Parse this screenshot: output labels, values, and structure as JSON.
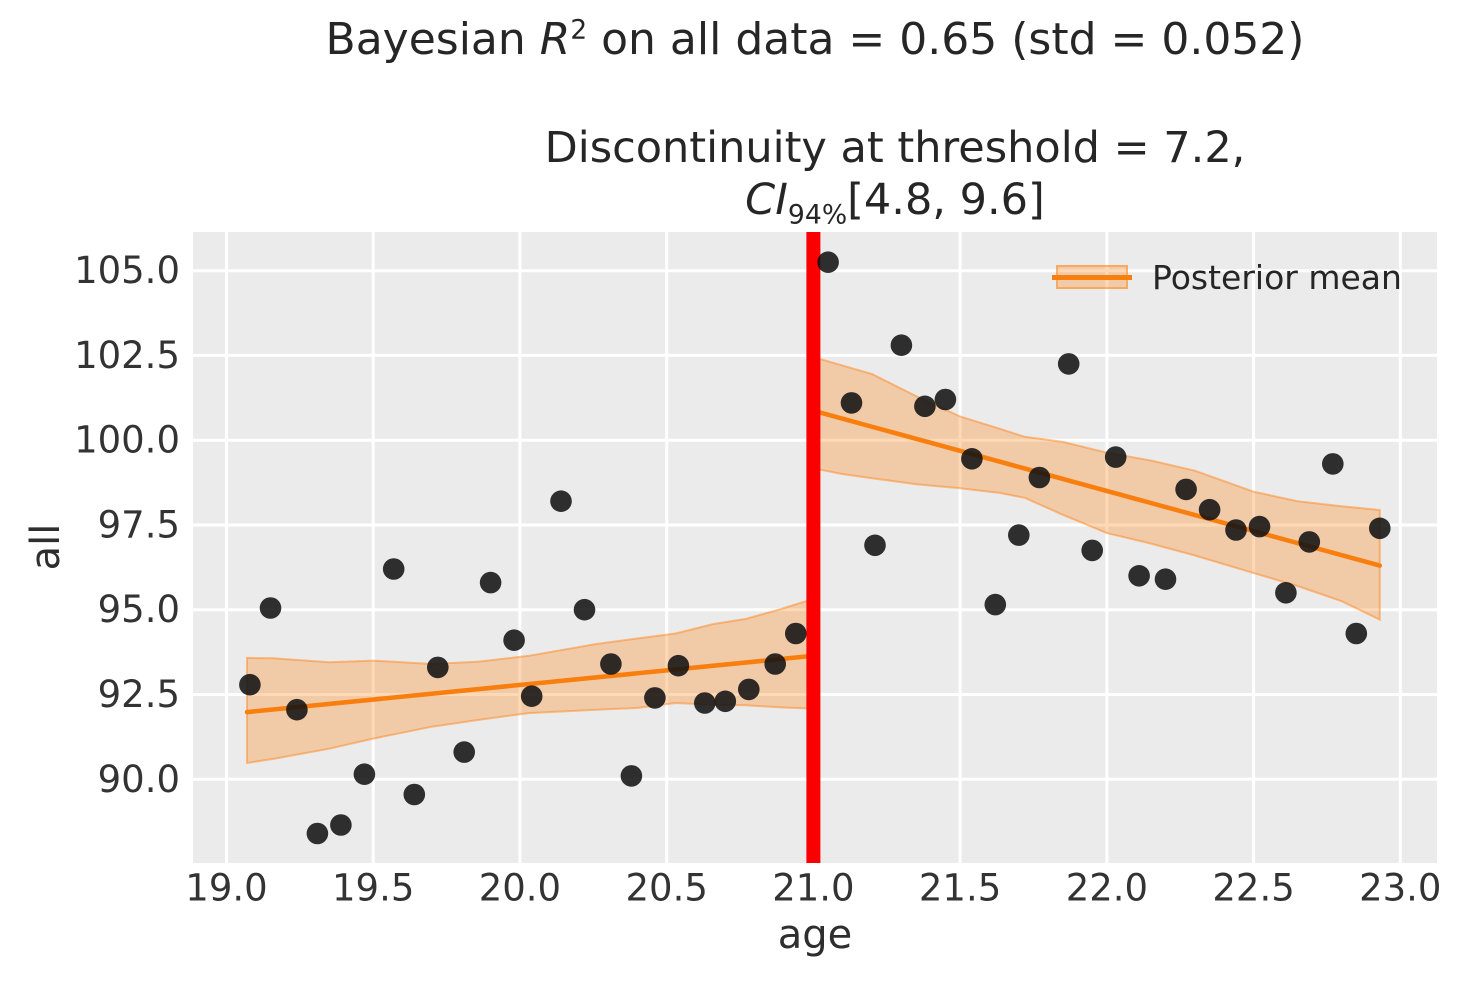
{
  "title": {
    "before_r": "Bayesian ",
    "r_symbol": "R",
    "r_sup": "2",
    "after_r": " on all data = 0.65 (std = 0.052)"
  },
  "subtitle": {
    "line1": "Discontinuity at threshold = 7.2,",
    "ci_label": "CI",
    "ci_subscript": "94%",
    "ci_interval": "[4.8, 9.6]"
  },
  "legend": {
    "label": "Posterior mean"
  },
  "axes": {
    "xlabel": "age",
    "ylabel": "all"
  },
  "chart_data": {
    "type": "scatter",
    "title": "Bayesian R^2 on all data = 0.65 (std = 0.052)",
    "subtitle": "Discontinuity at threshold = 7.2, CI_94% [4.8, 9.6]",
    "xlabel": "age",
    "ylabel": "all",
    "xlim": [
      18.886,
      23.125
    ],
    "ylim": [
      87.53,
      106.14
    ],
    "x_ticks": [
      "19.0",
      "19.5",
      "20.0",
      "20.5",
      "21.0",
      "21.5",
      "22.0",
      "22.5",
      "23.0"
    ],
    "x_tick_values": [
      19.0,
      19.5,
      20.0,
      20.5,
      21.0,
      21.5,
      22.0,
      22.5,
      23.0
    ],
    "y_ticks": [
      "90.0",
      "92.5",
      "95.0",
      "97.5",
      "100.0",
      "102.5",
      "105.0"
    ],
    "y_tick_values": [
      90.0,
      92.5,
      95.0,
      97.5,
      100.0,
      102.5,
      105.0
    ],
    "grid": true,
    "legend_position": "upper right",
    "threshold_x": 21.0,
    "r_squared": 0.65,
    "r_squared_std": 0.052,
    "discontinuity": 7.2,
    "ci_94": [
      4.8,
      9.6
    ],
    "scatter": [
      [
        19.08,
        92.79
      ],
      [
        19.15,
        95.05
      ],
      [
        19.24,
        92.05
      ],
      [
        19.31,
        88.4
      ],
      [
        19.39,
        88.65
      ],
      [
        19.47,
        90.15
      ],
      [
        19.57,
        96.2
      ],
      [
        19.64,
        89.55
      ],
      [
        19.72,
        93.3
      ],
      [
        19.81,
        90.8
      ],
      [
        19.9,
        95.8
      ],
      [
        19.98,
        94.1
      ],
      [
        20.04,
        92.45
      ],
      [
        20.14,
        98.2
      ],
      [
        20.22,
        95.0
      ],
      [
        20.31,
        93.4
      ],
      [
        20.38,
        90.1
      ],
      [
        20.46,
        92.4
      ],
      [
        20.54,
        93.35
      ],
      [
        20.63,
        92.25
      ],
      [
        20.7,
        92.3
      ],
      [
        20.78,
        92.65
      ],
      [
        20.87,
        93.4
      ],
      [
        20.94,
        94.3
      ],
      [
        21.05,
        105.25
      ],
      [
        21.13,
        101.1
      ],
      [
        21.21,
        96.9
      ],
      [
        21.3,
        102.8
      ],
      [
        21.38,
        101.0
      ],
      [
        21.45,
        101.2
      ],
      [
        21.54,
        99.45
      ],
      [
        21.62,
        95.15
      ],
      [
        21.7,
        97.2
      ],
      [
        21.77,
        98.9
      ],
      [
        21.87,
        102.25
      ],
      [
        21.95,
        96.75
      ],
      [
        22.03,
        99.5
      ],
      [
        22.11,
        96.0
      ],
      [
        22.2,
        95.9
      ],
      [
        22.27,
        98.55
      ],
      [
        22.35,
        97.95
      ],
      [
        22.44,
        97.35
      ],
      [
        22.52,
        97.45
      ],
      [
        22.61,
        95.5
      ],
      [
        22.69,
        97.0
      ],
      [
        22.77,
        99.3
      ],
      [
        22.85,
        94.3
      ],
      [
        22.93,
        97.4
      ]
    ],
    "segments": [
      {
        "name": "left",
        "line": {
          "x": [
            19.07,
            21.0
          ],
          "y": [
            91.98,
            93.64
          ]
        },
        "band": {
          "x": [
            19.07,
            19.16,
            19.35,
            19.5,
            19.7,
            19.86,
            20.03,
            20.26,
            20.4,
            20.53,
            20.66,
            20.77,
            20.89,
            21.0
          ],
          "hi": [
            93.58,
            93.57,
            93.45,
            93.5,
            93.4,
            93.47,
            93.64,
            93.99,
            94.15,
            94.3,
            94.58,
            94.73,
            95.02,
            95.32
          ],
          "lo": [
            90.48,
            90.6,
            90.9,
            91.2,
            91.55,
            91.75,
            91.95,
            92.05,
            92.1,
            92.25,
            92.2,
            92.18,
            92.12,
            92.08
          ]
        }
      },
      {
        "name": "right",
        "line": {
          "x": [
            21.0,
            22.93
          ],
          "y": [
            100.87,
            96.3
          ]
        },
        "band": {
          "x": [
            21.0,
            21.1,
            21.2,
            21.35,
            21.5,
            21.63,
            21.72,
            21.85,
            22.0,
            22.15,
            22.3,
            22.5,
            22.65,
            22.8,
            22.93
          ],
          "hi": [
            102.45,
            102.2,
            101.95,
            101.3,
            100.7,
            100.35,
            100.1,
            99.95,
            99.63,
            99.4,
            99.1,
            98.48,
            98.2,
            98.05,
            97.94
          ],
          "lo": [
            99.17,
            99.0,
            98.88,
            98.7,
            98.58,
            98.45,
            98.3,
            97.8,
            97.26,
            96.95,
            96.6,
            96.08,
            95.7,
            95.25,
            94.71
          ]
        }
      }
    ],
    "colors": {
      "background": "#ffffff",
      "plot_bg": "#ebebeb",
      "grid": "#ffffff",
      "scatter": "#111111",
      "posterior_line": "#f87e0e",
      "band_fill": "rgba(255,127,14,0.30)",
      "band_edge": "rgba(255,127,14,0.45)",
      "threshold_line": "#fa0000",
      "tick_text": "#333333",
      "title_text": "#262626"
    }
  }
}
